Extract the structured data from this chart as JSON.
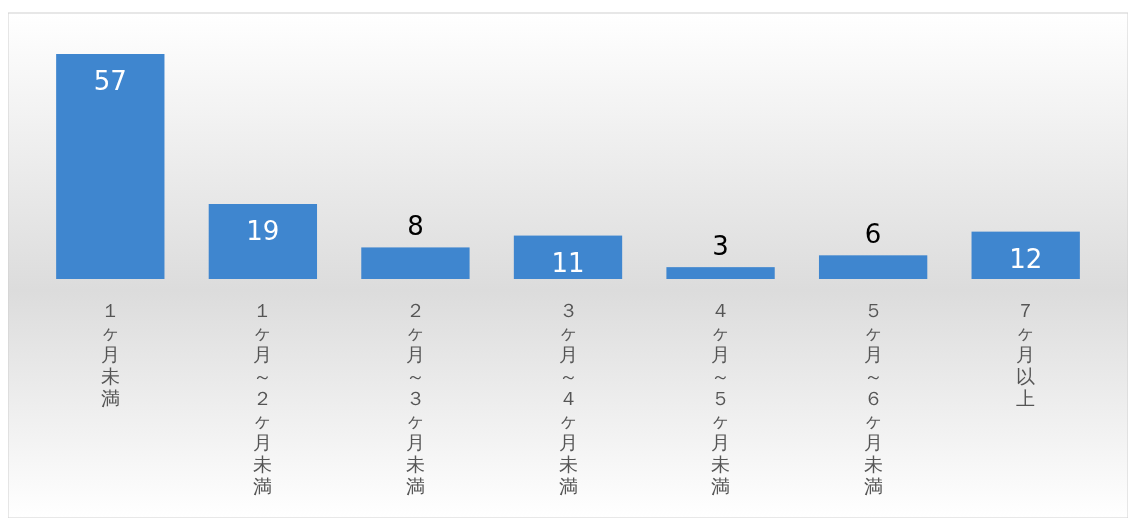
{
  "chart_data": {
    "type": "bar",
    "categories": [
      "１ヶ月未満",
      "１ヶ月～２ヶ月未満",
      "２ヶ月～３ヶ月未満",
      "３ヶ月～４ヶ月未満",
      "４ヶ月～５ヶ月未満",
      "５ヶ月～６ヶ月未満",
      "７ヶ月以上"
    ],
    "values": [
      57,
      19,
      8,
      11,
      3,
      6,
      12
    ],
    "color": "#3f86cf",
    "data_labels": true
  }
}
